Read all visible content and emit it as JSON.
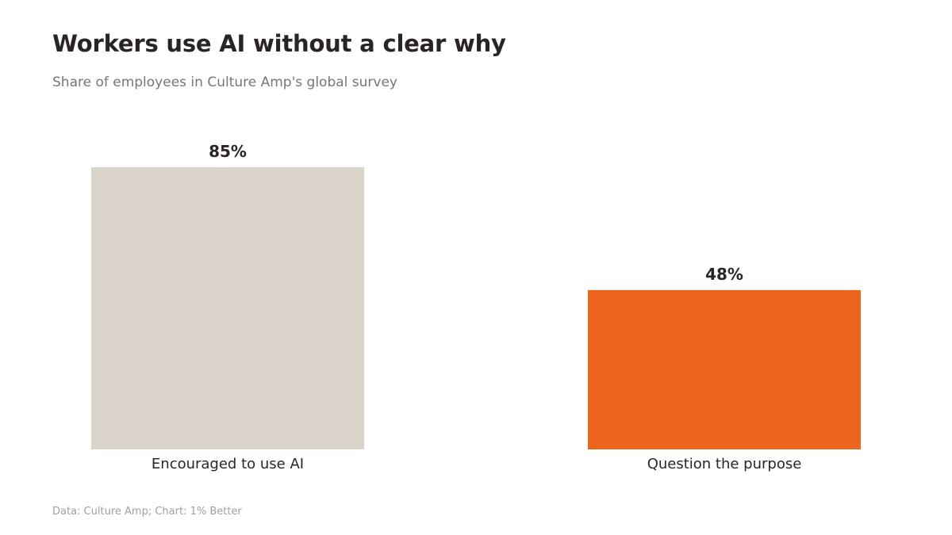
{
  "title": "Workers use AI without a clear why",
  "subtitle": "Share of employees in Culture Amp's global survey",
  "source": "Data: Culture Amp; Chart: 1% Better",
  "chart_data": {
    "type": "bar",
    "categories": [
      "Encouraged to use AI",
      "Question the purpose"
    ],
    "values": [
      85,
      48
    ],
    "value_labels": [
      "85%",
      "48%"
    ],
    "colors": [
      "#dad4ca",
      "#ec651f"
    ],
    "ylim": [
      0,
      85
    ],
    "grid": false,
    "legend": "none"
  }
}
